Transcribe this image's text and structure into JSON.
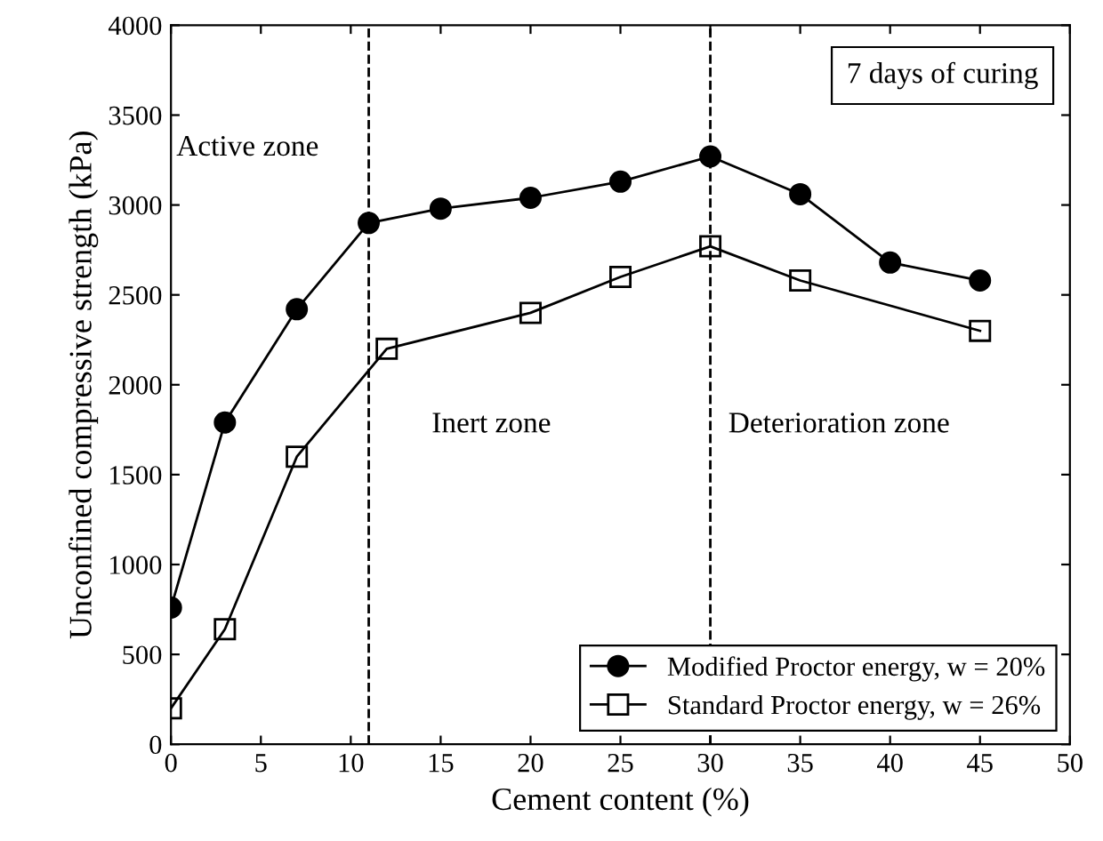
{
  "chart_data": {
    "type": "line",
    "xlabel": "Cement content (%)",
    "ylabel": "Unconfined compressive strength (kPa)",
    "xlim": [
      0,
      50
    ],
    "xticks": [
      0,
      5,
      10,
      15,
      20,
      25,
      30,
      35,
      40,
      45,
      50
    ],
    "ylim": [
      0,
      4000
    ],
    "yticks": [
      0,
      500,
      1000,
      1500,
      2000,
      2500,
      3000,
      3500,
      4000
    ],
    "grid": false,
    "legend": "bottom right",
    "line_style": "solid",
    "series": [
      {
        "name": "Modified Proctor energy, w = 20%",
        "color": "#000000",
        "marker": "circle",
        "x": [
          0,
          3,
          7,
          11,
          15,
          20,
          25,
          30,
          35,
          40,
          45
        ],
        "values": [
          760,
          1790,
          2420,
          2900,
          2980,
          3040,
          3130,
          3270,
          3060,
          2680,
          2580
        ]
      },
      {
        "name": "Standard Proctor energy, w = 26%",
        "color": "#000000",
        "marker": "square",
        "x": [
          0,
          3,
          7,
          12,
          20,
          25,
          30,
          35,
          45
        ],
        "values": [
          200,
          640,
          1600,
          2200,
          2400,
          2600,
          2770,
          2580,
          2300
        ]
      }
    ],
    "ref_lines": [
      {
        "axis": "x",
        "value": 11,
        "label": null,
        "color": "#000000",
        "line_style": "dashed"
      },
      {
        "axis": "x",
        "value": 30,
        "label": null,
        "color": "#000000",
        "line_style": "dashed"
      }
    ],
    "annotations": [
      "Active zone",
      "Inert zone",
      "Deterioration zone",
      "7 days of curing"
    ]
  }
}
